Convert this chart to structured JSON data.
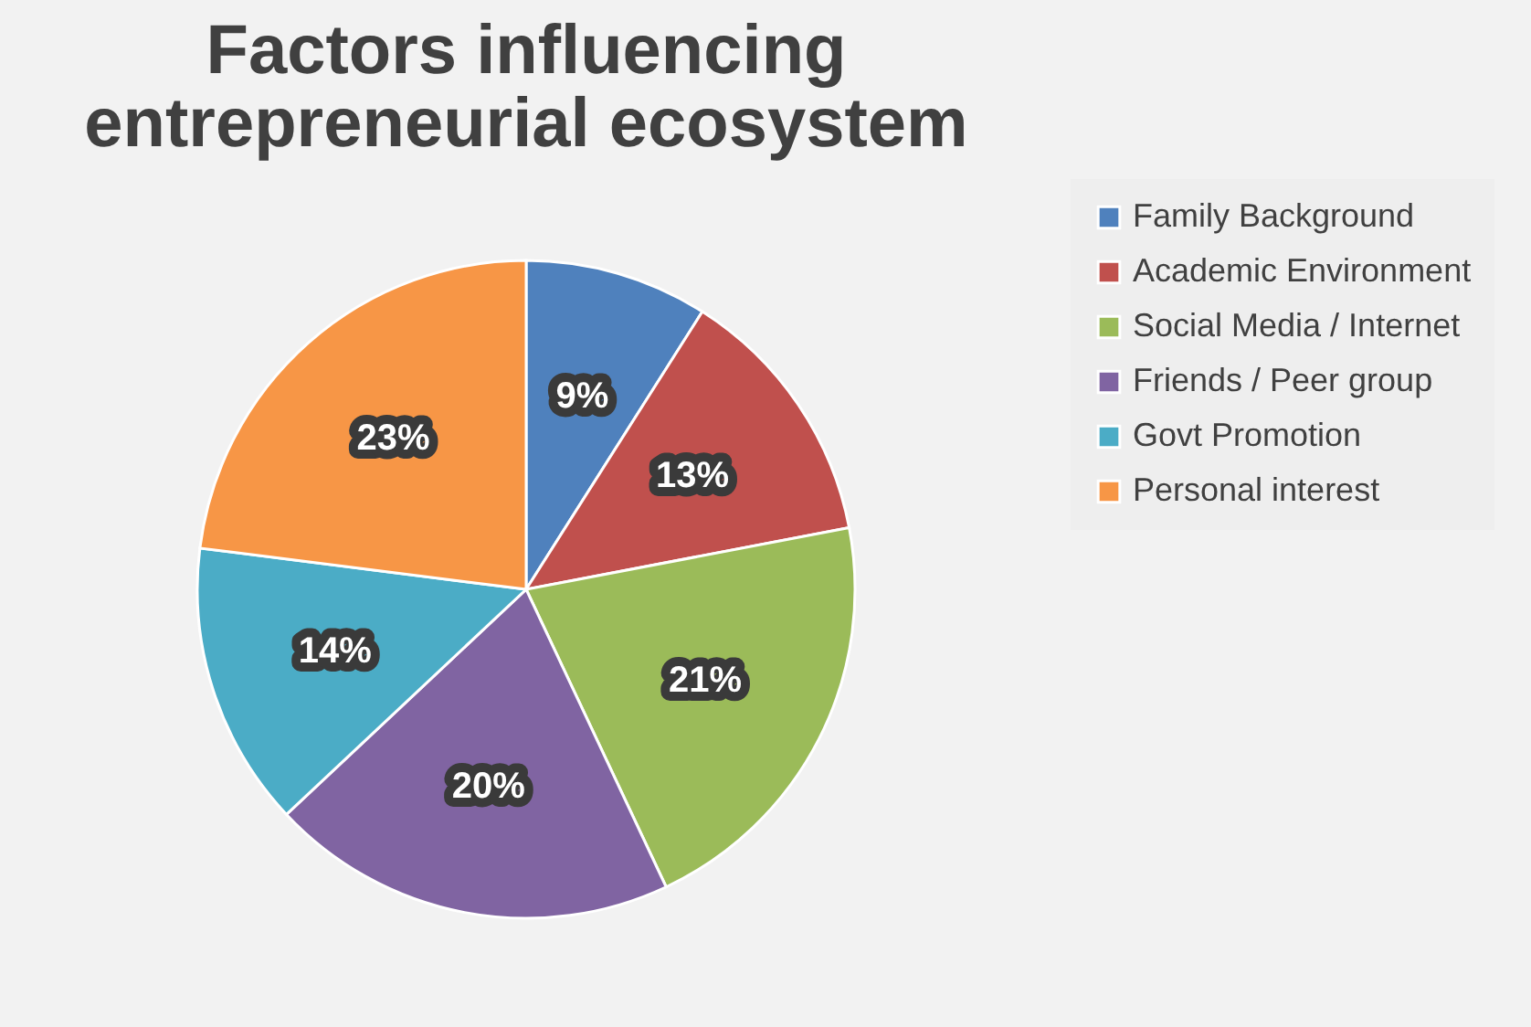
{
  "chart_data": {
    "type": "pie",
    "title": "Factors influencing entrepreneurial ecosystem",
    "categories": [
      "Family Background",
      "Academic Environment",
      "Social Media / Internet",
      "Friends / Peer group",
      "Govt Promotion",
      "Personal interest"
    ],
    "values": [
      9,
      13,
      21,
      20,
      14,
      23
    ],
    "colors": [
      "#4f81bd",
      "#c0504d",
      "#9bbb59",
      "#8064a2",
      "#4bacc6",
      "#f79646"
    ],
    "value_labels": [
      "9%",
      "13%",
      "21%",
      "20%",
      "14%",
      "23%"
    ],
    "legend": "right"
  }
}
